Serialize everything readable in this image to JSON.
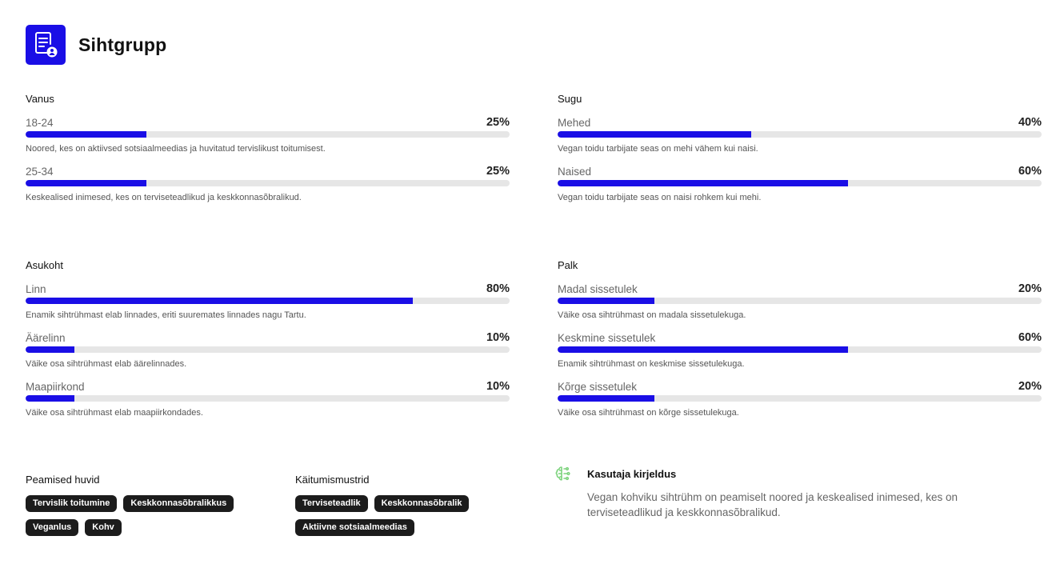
{
  "header": {
    "title": "Sihtgrupp",
    "icon": "document-user-icon"
  },
  "colors": {
    "accent": "#1a0ee6",
    "track": "#e6e6e6",
    "tag_bg": "#1c1c1c",
    "persona_icon": "#7dd37d"
  },
  "sections": {
    "vanus": {
      "title": "Vanus",
      "items": [
        {
          "label": "18-24",
          "percent_text": "25%",
          "value": 25,
          "description": "Noored, kes on aktiivsed sotsiaalmeedias ja huvitatud tervislikust toitumisest."
        },
        {
          "label": "25-34",
          "percent_text": "25%",
          "value": 25,
          "description": "Keskealised inimesed, kes on terviseteadlikud ja keskkonnasõbralikud."
        }
      ]
    },
    "sugu": {
      "title": "Sugu",
      "items": [
        {
          "label": "Mehed",
          "percent_text": "40%",
          "value": 40,
          "description": "Vegan toidu tarbijate seas on mehi vähem kui naisi."
        },
        {
          "label": "Naised",
          "percent_text": "60%",
          "value": 60,
          "description": "Vegan toidu tarbijate seas on naisi rohkem kui mehi."
        }
      ]
    },
    "asukoht": {
      "title": "Asukoht",
      "items": [
        {
          "label": "Linn",
          "percent_text": "80%",
          "value": 80,
          "description": "Enamik sihtrühmast elab linnades, eriti suuremates linnades nagu Tartu."
        },
        {
          "label": "Äärelinn",
          "percent_text": "10%",
          "value": 10,
          "description": "Väike osa sihtrühmast elab äärelinnades."
        },
        {
          "label": "Maapiirkond",
          "percent_text": "10%",
          "value": 10,
          "description": "Väike osa sihtrühmast elab maapiirkondades."
        }
      ]
    },
    "palk": {
      "title": "Palk",
      "items": [
        {
          "label": "Madal sissetulek",
          "percent_text": "20%",
          "value": 20,
          "description": "Väike osa sihtrühmast on madala sissetulekuga."
        },
        {
          "label": "Keskmine sissetulek",
          "percent_text": "60%",
          "value": 60,
          "description": "Enamik sihtrühmast on keskmise sissetulekuga."
        },
        {
          "label": "Kõrge sissetulek",
          "percent_text": "20%",
          "value": 20,
          "description": "Väike osa sihtrühmast on kõrge sissetulekuga."
        }
      ]
    }
  },
  "interests": {
    "title": "Peamised huvid",
    "tags": [
      "Tervislik toitumine",
      "Keskkonnasõbralikkus",
      "Veganlus",
      "Kohv"
    ]
  },
  "behaviors": {
    "title": "Käitumismustrid",
    "tags": [
      "Terviseteadlik",
      "Keskkonnasõbralik",
      "Aktiivne sotsiaalmeedias"
    ]
  },
  "persona": {
    "icon": "brain-icon",
    "title": "Kasutaja kirjeldus",
    "text": "Vegan kohviku sihtrühm on peamiselt noored ja keskealised inimesed, kes on terviseteadlikud ja keskkonnasõbralikud."
  }
}
